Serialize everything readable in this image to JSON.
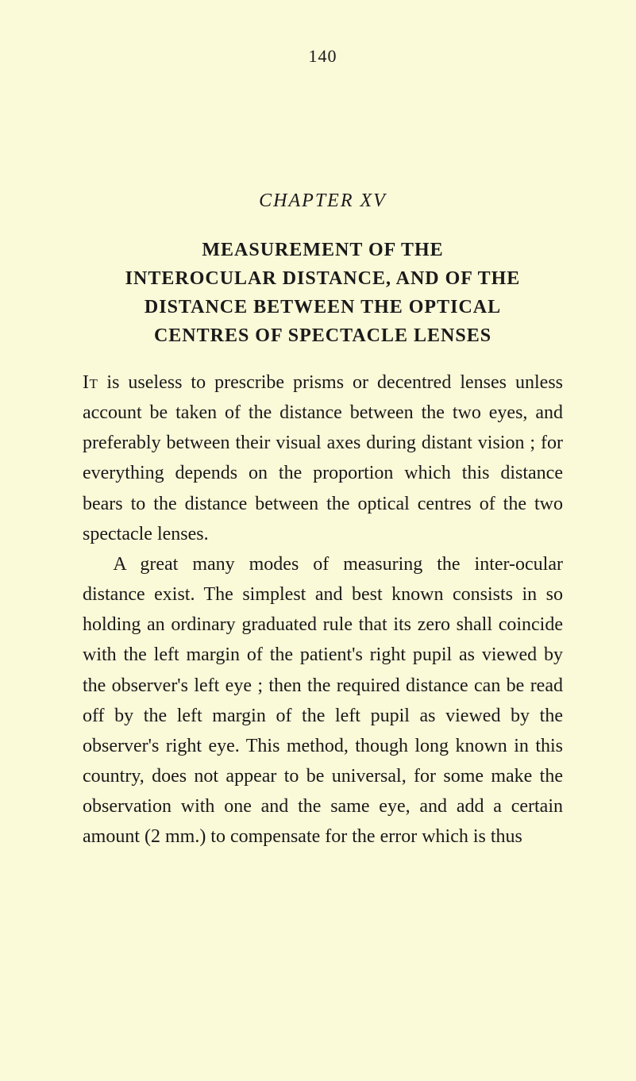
{
  "page_number": "140",
  "chapter_label": "CHAPTER  XV",
  "title_line1": "MEASUREMENT OF THE",
  "title_line2": "INTEROCULAR DISTANCE, AND OF THE",
  "title_line3": "DISTANCE BETWEEN THE OPTICAL",
  "title_line4": "CENTRES OF SPECTACLE LENSES",
  "para1_lead": "It",
  "para1_rest": " is useless to prescribe prisms or decentred lenses unless account be taken of the distance between the two eyes, and preferably between their visual axes during distant vision ; for everything depends on the proportion which this distance bears to the distance between the optical centres of the two spectacle lenses.",
  "para2": "A great many modes of measuring the inter-ocular distance exist. The simplest and best known consists in so holding an ordinary graduated rule that its zero shall coincide with the left margin of the patient's right pupil as viewed by the observer's left eye ; then the required distance can be read off by the left margin of the left pupil as viewed by the observer's right eye. This method, though long known in this country, does not appear to be universal, for some make the observation with one and the same eye, and add a certain amount (2 mm.) to compensate for the error which is thus"
}
